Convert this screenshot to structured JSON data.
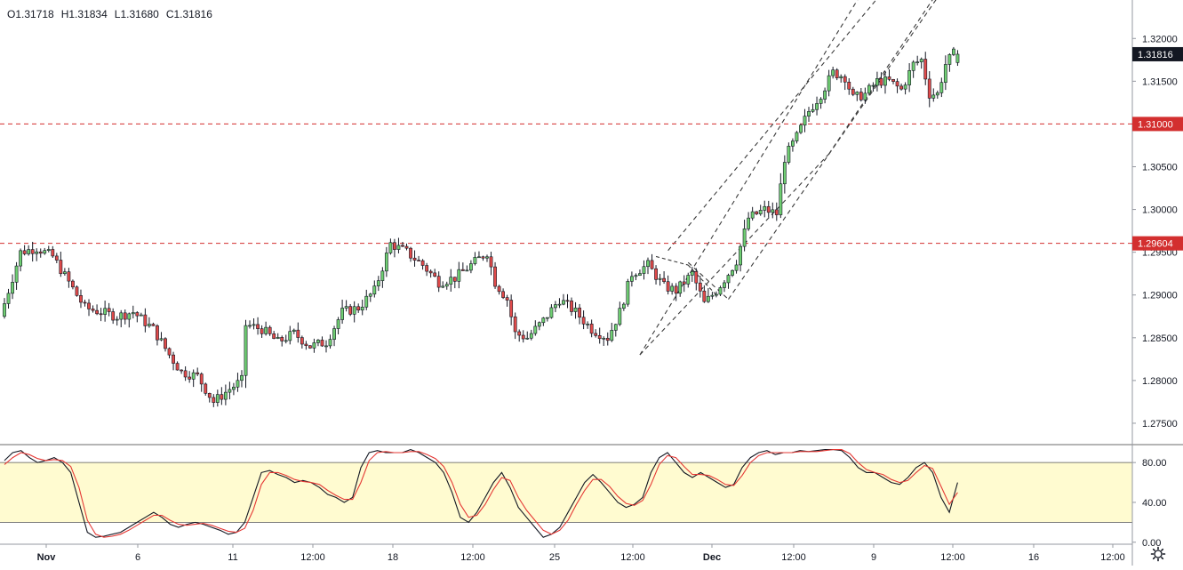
{
  "header": {
    "open": "O1.31718",
    "high": "H1.31834",
    "low": "L1.31680",
    "close": "C1.31816"
  },
  "colors": {
    "up": "#6fcf72",
    "down": "#e04a4a",
    "wick": "#131722",
    "hline": "#d32f2f",
    "price_tag": "#131722",
    "stoch_k": "#131722",
    "stoch_d": "#e53935",
    "stoch_band": "#fffbd0",
    "channel": "#3a3a3a",
    "axis_text": "#131722"
  },
  "chart_data": [
    {
      "type": "candlestick",
      "title": "",
      "price_axis": {
        "min": 1.2725,
        "max": 1.3245,
        "ticks": [
          "1.27500",
          "1.28000",
          "1.28500",
          "1.29000",
          "1.29500",
          "1.30000",
          "1.30500",
          "1.31000",
          "1.31500",
          "1.32000"
        ]
      },
      "time_axis": {
        "bars": 183,
        "labels": [
          {
            "bar": 9,
            "text": "Nov"
          },
          {
            "bar": 29,
            "text": "6"
          },
          {
            "bar": 49,
            "text": "11"
          },
          {
            "bar": 69,
            "text": "12:00"
          },
          {
            "bar": 89,
            "text": "18"
          },
          {
            "bar": 109,
            "text": "12:00"
          },
          {
            "bar": 128,
            "text": "25"
          },
          {
            "bar": 148,
            "text": "12:00"
          },
          {
            "bar": 167,
            "text": "Dec"
          },
          {
            "bar": 187,
            "text": "12:00"
          },
          {
            "bar": 207,
            "text": "9"
          },
          {
            "bar": 227,
            "text": "12:00"
          },
          {
            "bar": 247,
            "text": "16"
          },
          {
            "bar": 266,
            "text": "12:00"
          }
        ]
      },
      "price_tags": [
        {
          "value": 1.31816,
          "label": "1.31816",
          "kind": "last"
        },
        {
          "value": 1.31,
          "label": "1.31000",
          "kind": "level"
        },
        {
          "value": 1.29604,
          "label": "1.29604",
          "kind": "level"
        }
      ],
      "horizontal_levels": [
        1.31,
        1.29604
      ],
      "channel_lines": [
        {
          "from": [
            -2,
            1.286
          ],
          "to": [
            50,
            1.328
          ]
        },
        {
          "from": [
            0,
            1.283
          ],
          "to": [
            80,
            1.329
          ]
        },
        {
          "from": [
            0,
            1.2885
          ],
          "to": [
            46,
            1.3095
          ]
        },
        {
          "from": [
            46,
            1.3095
          ],
          "to": [
            60,
            1.316
          ]
        },
        {
          "from": [
            17,
            1.2882
          ],
          "to": [
            75,
            1.33
          ]
        },
        {
          "from": [
            17,
            1.2882
          ],
          "to": [
            0,
            1.295
          ]
        }
      ],
      "candles": []
    },
    {
      "type": "line",
      "title": "",
      "indicator_axis": {
        "min": -2,
        "max": 98,
        "ticks": [
          "0.00",
          "40.00",
          "80.00"
        ]
      },
      "band": {
        "upper": 80,
        "lower": 20
      },
      "series": [
        {
          "key": "k",
          "values": [
            82,
            90,
            92,
            85,
            80,
            82,
            85,
            80,
            70,
            40,
            10,
            5,
            6,
            8,
            10,
            15,
            20,
            25,
            30,
            25,
            18,
            15,
            18,
            20,
            18,
            15,
            12,
            8,
            10,
            20,
            45,
            70,
            72,
            68,
            65,
            60,
            62,
            60,
            55,
            48,
            45,
            40,
            45,
            75,
            90,
            92,
            90,
            90,
            90,
            93,
            90,
            85,
            80,
            70,
            50,
            25,
            20,
            30,
            45,
            60,
            70,
            55,
            35,
            25,
            15,
            5,
            8,
            15,
            30,
            45,
            60,
            68,
            60,
            50,
            40,
            35,
            38,
            45,
            70,
            85,
            90,
            80,
            70,
            65,
            70,
            65,
            60,
            55,
            58,
            75,
            85,
            90,
            92,
            88,
            90,
            90,
            92,
            91,
            92,
            93,
            93,
            92,
            85,
            75,
            70,
            70,
            65,
            60,
            58,
            65,
            75,
            80,
            70,
            45,
            30,
            60
          ]
        },
        {
          "key": "d",
          "values": [
            78,
            85,
            90,
            88,
            84,
            82,
            83,
            82,
            76,
            55,
            22,
            8,
            5,
            6,
            8,
            12,
            17,
            22,
            27,
            27,
            22,
            18,
            17,
            18,
            19,
            17,
            14,
            11,
            10,
            14,
            32,
            58,
            70,
            70,
            67,
            63,
            61,
            60,
            58,
            52,
            47,
            43,
            43,
            60,
            82,
            90,
            91,
            90,
            90,
            91,
            91,
            88,
            84,
            76,
            60,
            38,
            25,
            27,
            38,
            53,
            65,
            62,
            45,
            32,
            22,
            12,
            8,
            12,
            22,
            38,
            52,
            63,
            63,
            56,
            46,
            39,
            37,
            42,
            58,
            78,
            87,
            85,
            76,
            68,
            68,
            67,
            63,
            58,
            57,
            67,
            80,
            87,
            90,
            90,
            90,
            90,
            91,
            91,
            91,
            92,
            93,
            93,
            89,
            80,
            73,
            70,
            68,
            63,
            60,
            62,
            70,
            77,
            74,
            56,
            38,
            50
          ]
        }
      ]
    }
  ]
}
